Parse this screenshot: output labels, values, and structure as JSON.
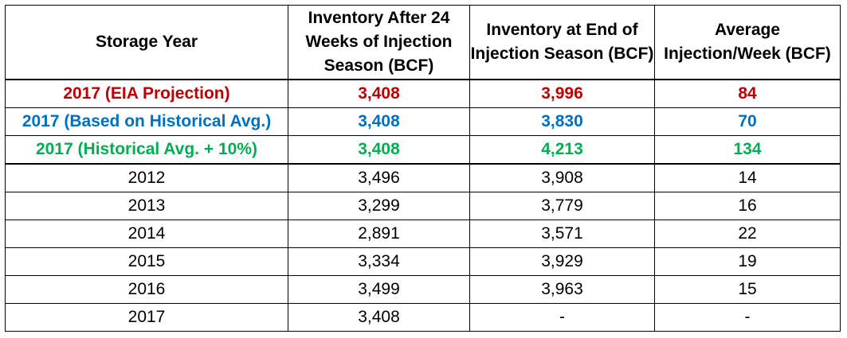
{
  "chart_data": {
    "type": "table",
    "columns": [
      "Storage Year",
      "Inventory After 24 Weeks of Injection Season (BCF)",
      "Inventory at End of Injection Season (BCF)",
      "Average Injection/Week (BCF)"
    ],
    "rows": [
      {
        "cells": [
          "2017 (EIA Projection)",
          "3,408",
          "3,996",
          "84"
        ],
        "color": "#c00000",
        "bold": true
      },
      {
        "cells": [
          "2017 (Based on Historical Avg.)",
          "3,408",
          "3,830",
          "70"
        ],
        "color": "#0070c0",
        "bold": true
      },
      {
        "cells": [
          "2017 (Historical Avg. + 10%)",
          "3,408",
          "4,213",
          "134"
        ],
        "color": "#00b050",
        "bold": true
      },
      {
        "cells": [
          "2012",
          "3,496",
          "3,908",
          "14"
        ],
        "color": "#000000",
        "bold": false
      },
      {
        "cells": [
          "2013",
          "3,299",
          "3,779",
          "16"
        ],
        "color": "#000000",
        "bold": false
      },
      {
        "cells": [
          "2014",
          "2,891",
          "3,571",
          "22"
        ],
        "color": "#000000",
        "bold": false
      },
      {
        "cells": [
          "2015",
          "3,334",
          "3,929",
          "19"
        ],
        "color": "#000000",
        "bold": false
      },
      {
        "cells": [
          "2016",
          "3,499",
          "3,963",
          "15"
        ],
        "color": "#000000",
        "bold": false
      },
      {
        "cells": [
          "2017",
          "3,408",
          "-",
          "-"
        ],
        "color": "#000000",
        "bold": false
      }
    ]
  }
}
